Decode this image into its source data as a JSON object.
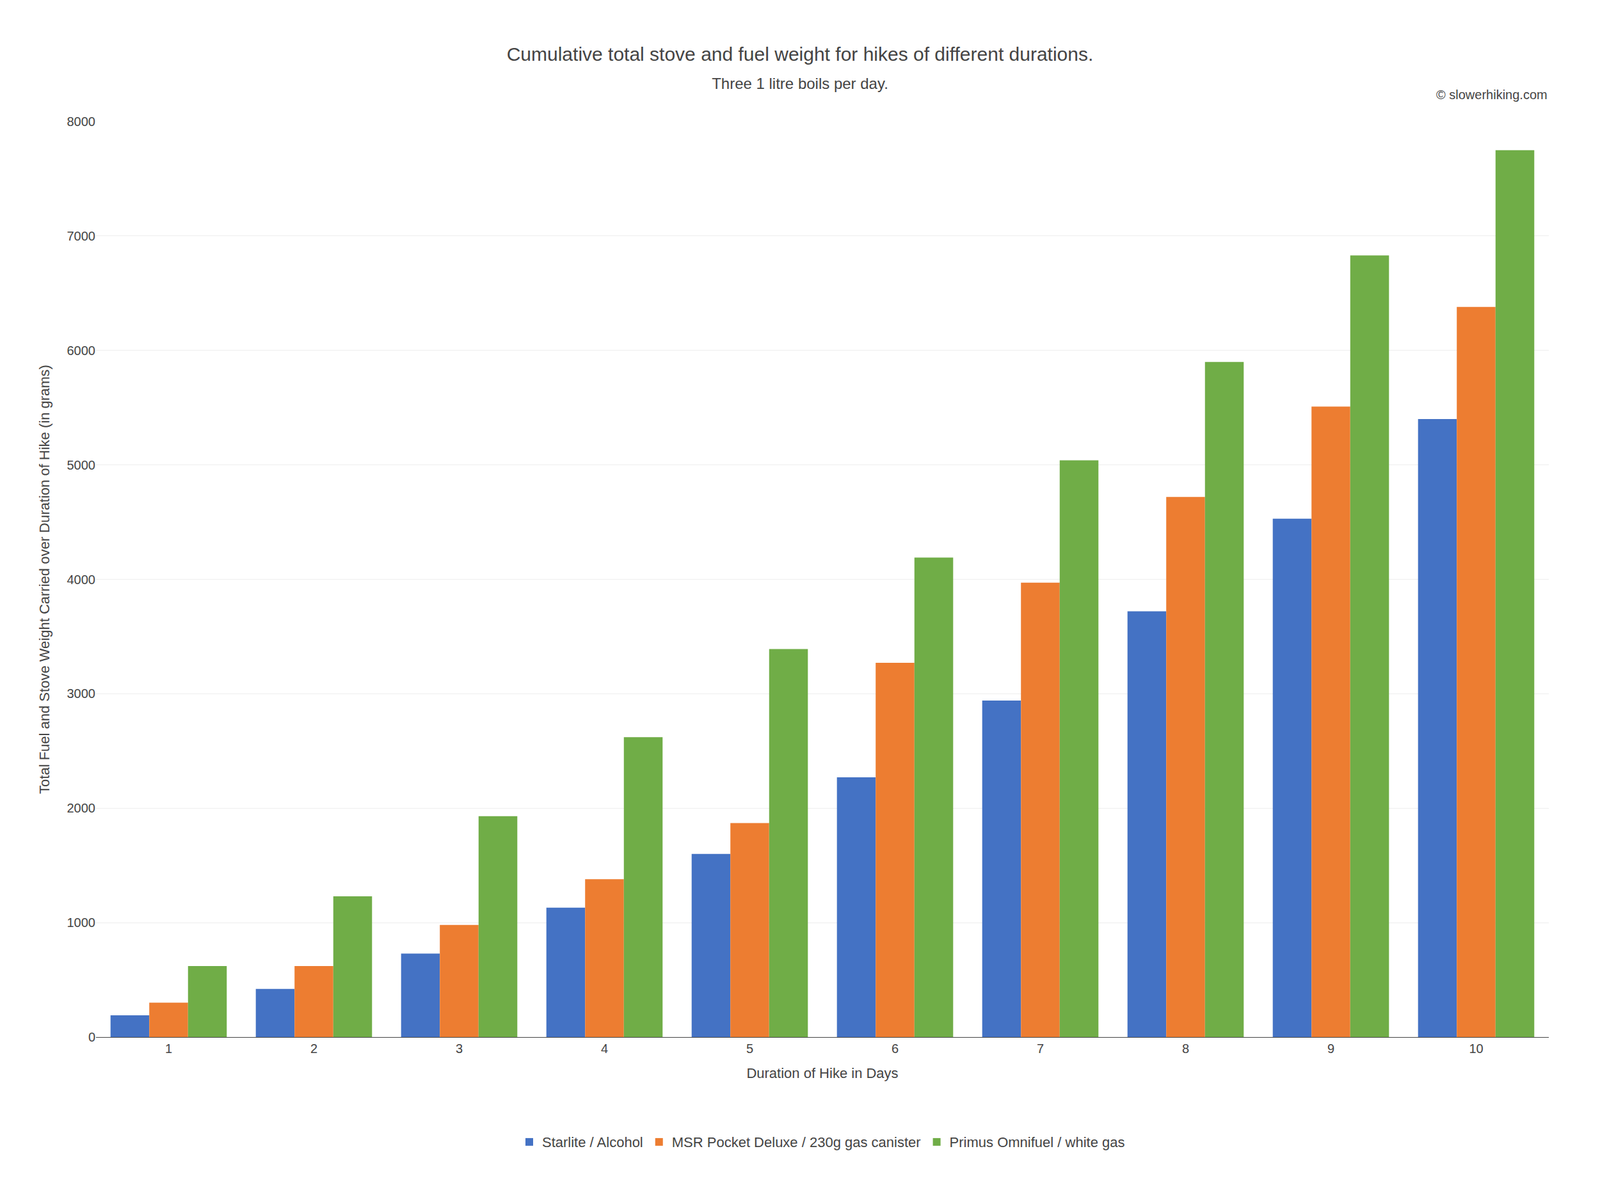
{
  "chart_data": {
    "type": "bar",
    "title": "Cumulative total stove and fuel weight for hikes of different durations.",
    "subtitle": "Three 1 litre boils per day.",
    "annotations": [
      "© slowerhiking.com"
    ],
    "xlabel": "Duration of Hike in Days",
    "ylabel": "Total Fuel and Stove Weight Carried over Duration of Hike (in grams)",
    "categories": [
      "1",
      "2",
      "3",
      "4",
      "5",
      "6",
      "7",
      "8",
      "9",
      "10"
    ],
    "series": [
      {
        "name": "Starlite / Alcohol",
        "color": "#4472C4",
        "values": [
          190,
          420,
          730,
          1130,
          1600,
          2270,
          2940,
          3720,
          4530,
          5400
        ]
      },
      {
        "name": "MSR Pocket Deluxe / 230g gas canister",
        "color": "#ED7D31",
        "values": [
          300,
          620,
          980,
          1380,
          1870,
          3270,
          3970,
          4720,
          5510,
          6380
        ]
      },
      {
        "name": "Primus Omnifuel / white gas",
        "color": "#70AD47",
        "values": [
          620,
          1230,
          1930,
          2620,
          3390,
          4190,
          5040,
          5900,
          6830,
          7750
        ]
      }
    ],
    "ylim": [
      0,
      8000
    ],
    "yticks": [
      0,
      1000,
      2000,
      3000,
      4000,
      5000,
      6000,
      7000,
      8000
    ],
    "grid": true,
    "legend": "bottom"
  }
}
